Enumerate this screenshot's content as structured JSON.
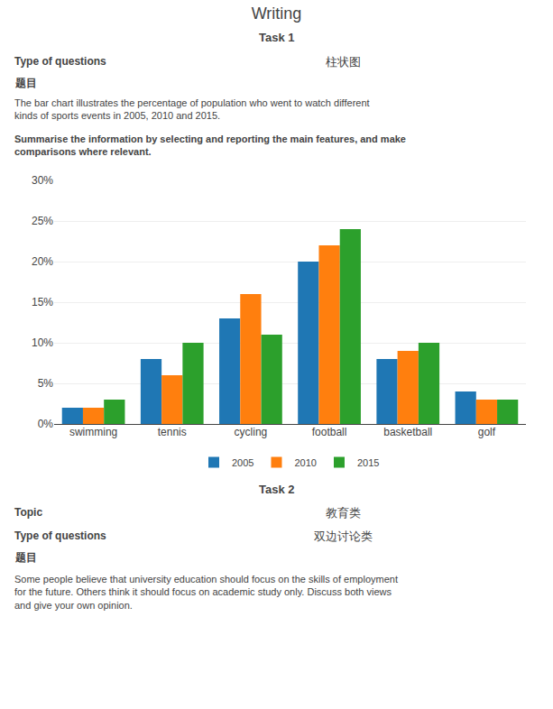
{
  "chart_data": {
    "type": "bar",
    "title": "Writing",
    "annotations": [
      "Task 1",
      "Type of questions",
      "柱状图",
      "题目",
      "The bar chart illustrates the percentage of population who went to watch different\nkinds of sports events in 2005, 2010 and 2015.",
      "Summarise the information by selecting and reporting the main features, and make\ncomparisons where relevant.",
      "Task 2",
      "Topic",
      "教育类",
      "Type of questions",
      "双边讨论类",
      "题目",
      "Some people believe that university education should focus on the skills of employment\nfor the future. Others think it should focus on academic study only. Discuss both views\nand give your own opinion."
    ],
    "categories": [
      "swimming",
      "tennis",
      "cycling",
      "football",
      "basketball",
      "golf"
    ],
    "series": [
      {
        "name": "2005",
        "values": [
          2,
          8,
          13,
          20,
          8,
          4
        ]
      },
      {
        "name": "2010",
        "values": [
          2,
          6,
          16,
          22,
          9,
          3
        ]
      },
      {
        "name": "2015",
        "values": [
          3,
          10,
          11,
          24,
          10,
          3
        ]
      }
    ],
    "ylim": [
      0,
      30
    ],
    "yticks": [
      {
        "value": 0,
        "label": "0%"
      },
      {
        "value": 5,
        "label": "5%"
      },
      {
        "value": 10,
        "label": "10%"
      },
      {
        "value": 15,
        "label": "15%"
      },
      {
        "value": 20,
        "label": "20%"
      },
      {
        "value": 25,
        "label": "25%"
      },
      {
        "value": 30,
        "label": "30%"
      }
    ],
    "grid": true,
    "legend": "bottom"
  }
}
